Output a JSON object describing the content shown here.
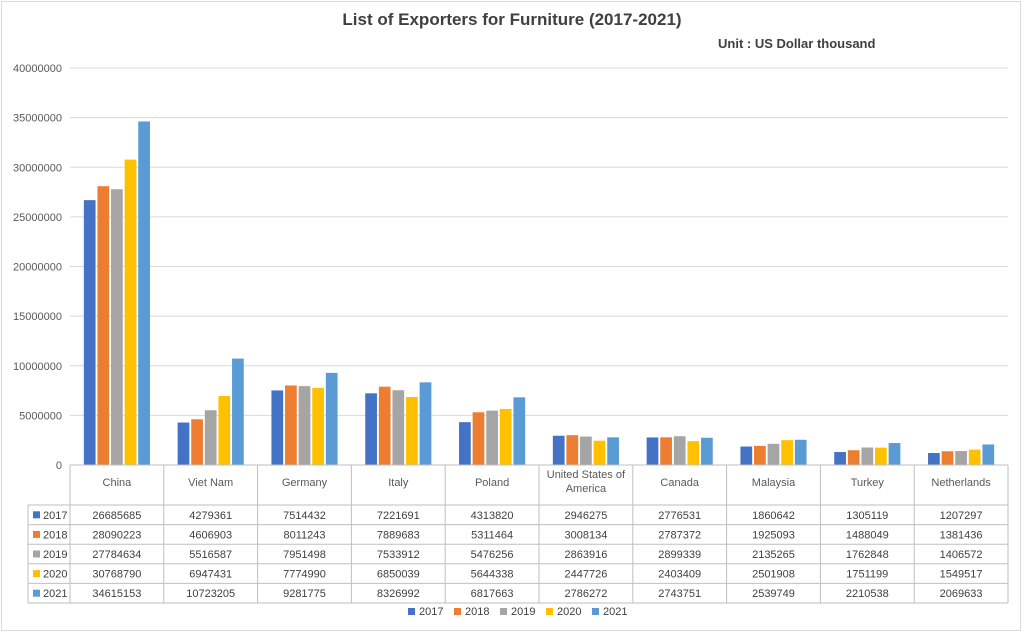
{
  "chart_data": {
    "type": "bar",
    "title": "List of Exporters for Furniture (2017-2021)",
    "subtitle": "Unit : US Dollar thousand",
    "categories": [
      "China",
      "Viet Nam",
      "Germany",
      "Italy",
      "Poland",
      "United States of America",
      "Canada",
      "Malaysia",
      "Turkey",
      "Netherlands"
    ],
    "series": [
      {
        "name": "2017",
        "color": "#4472c4",
        "values": [
          26685685,
          4279361,
          7514432,
          7221691,
          4313820,
          2946275,
          2776531,
          1860642,
          1305119,
          1207297
        ]
      },
      {
        "name": "2018",
        "color": "#ed7d31",
        "values": [
          28090223,
          4606903,
          8011243,
          7889683,
          5311464,
          3008134,
          2787372,
          1925093,
          1488049,
          1381436
        ]
      },
      {
        "name": "2019",
        "color": "#a5a5a5",
        "values": [
          27784634,
          5516587,
          7951498,
          7533912,
          5476256,
          2863916,
          2899339,
          2135265,
          1762848,
          1406572
        ]
      },
      {
        "name": "2020",
        "color": "#ffc000",
        "values": [
          30768790,
          6947431,
          7774990,
          6850039,
          5644338,
          2447726,
          2403409,
          2501908,
          1751199,
          1549517
        ]
      },
      {
        "name": "2021",
        "color": "#5b9bd5",
        "values": [
          34615153,
          10723205,
          9281775,
          8326992,
          6817663,
          2786272,
          2743751,
          2539749,
          2210538,
          2069633
        ]
      }
    ],
    "ylim": [
      0,
      40000000
    ],
    "yticks": [
      "0",
      "5000000",
      "10000000",
      "15000000",
      "20000000",
      "25000000",
      "30000000",
      "35000000",
      "40000000"
    ],
    "grid": true,
    "legend": "bottom",
    "data_table": true
  }
}
